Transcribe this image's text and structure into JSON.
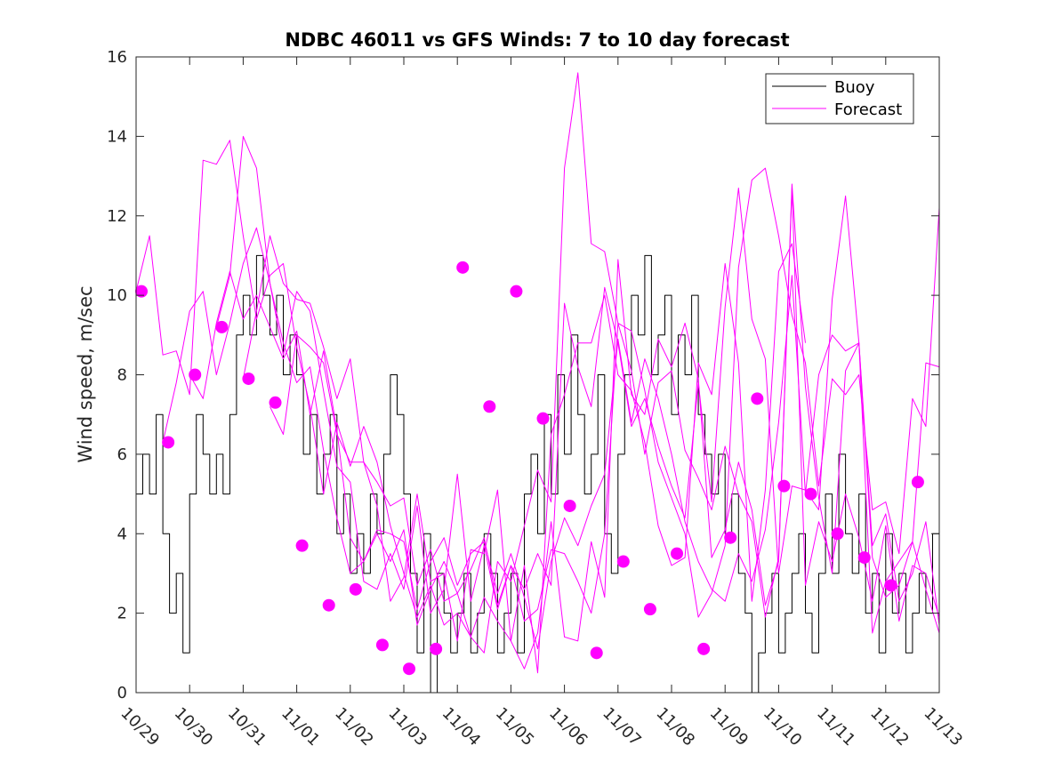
{
  "chart_data": {
    "type": "line",
    "title": "NDBC 46011 vs GFS Winds: 7 to 10 day forecast",
    "xlabel": "",
    "ylabel": "Wind speed, m/sec",
    "xlim": [
      0,
      15
    ],
    "ylim": [
      0,
      16
    ],
    "yticks": [
      0,
      2,
      4,
      6,
      8,
      10,
      12,
      14,
      16
    ],
    "xtick_labels": [
      "10/29",
      "10/30",
      "10/31",
      "11/01",
      "11/02",
      "11/03",
      "11/04",
      "11/05",
      "11/06",
      "11/07",
      "11/08",
      "11/09",
      "11/10",
      "11/11",
      "11/12",
      "11/13"
    ],
    "legend": {
      "position": "top-right",
      "entries": [
        "Buoy",
        "Forecast"
      ]
    },
    "colors": {
      "buoy": "#000000",
      "forecast": "#ff00ff"
    },
    "series": [
      {
        "name": "Buoy",
        "x": [
          0,
          0.125,
          0.25,
          0.375,
          0.5,
          0.625,
          0.75,
          0.875,
          1,
          1.125,
          1.25,
          1.375,
          1.5,
          1.625,
          1.75,
          1.875,
          2,
          2.125,
          2.25,
          2.375,
          2.5,
          2.625,
          2.75,
          2.875,
          3,
          3.125,
          3.25,
          3.375,
          3.5,
          3.625,
          3.75,
          3.875,
          4,
          4.125,
          4.25,
          4.375,
          4.5,
          4.625,
          4.75,
          4.875,
          5,
          5.125,
          5.25,
          5.375,
          5.5,
          5.625,
          5.75,
          5.875,
          6,
          6.125,
          6.25,
          6.375,
          6.5,
          6.625,
          6.75,
          6.875,
          7,
          7.125,
          7.25,
          7.375,
          7.5,
          7.625,
          7.75,
          7.875,
          8,
          8.125,
          8.25,
          8.375,
          8.5,
          8.625,
          8.75,
          8.875,
          9,
          9.125,
          9.25,
          9.375,
          9.5,
          9.625,
          9.75,
          9.875,
          10,
          10.125,
          10.25,
          10.375,
          10.5,
          10.625,
          10.75,
          10.875,
          11,
          11.125,
          11.25,
          11.375,
          11.5,
          11.625,
          11.75,
          11.875,
          12,
          12.125,
          12.25,
          12.375,
          12.5,
          12.625,
          12.75,
          12.875,
          13,
          13.125,
          13.25,
          13.375,
          13.5,
          13.625,
          13.75,
          13.875,
          14,
          14.125,
          14.25,
          14.375,
          14.5,
          14.625,
          14.75,
          14.875,
          15
        ],
        "values": [
          5,
          6,
          5,
          7,
          4,
          2,
          3,
          1,
          5,
          7,
          6,
          5,
          6,
          5,
          7,
          9,
          10,
          9,
          11,
          10,
          9,
          10,
          8,
          9,
          8,
          6,
          7,
          5,
          6,
          7,
          4,
          5,
          3,
          4,
          3,
          5,
          4,
          6,
          8,
          7,
          5,
          3,
          1,
          4,
          0,
          3,
          2,
          1,
          2,
          3,
          1,
          2,
          4,
          3,
          1,
          2,
          3,
          1,
          5,
          6,
          4,
          7,
          5,
          8,
          6,
          9,
          7,
          5,
          6,
          8,
          4,
          3,
          6,
          8,
          10,
          9,
          11,
          8,
          9,
          10,
          7,
          9,
          8,
          10,
          7,
          6,
          5,
          6,
          4,
          5,
          3,
          2,
          0,
          1,
          2,
          3,
          1,
          2,
          3,
          4,
          2,
          1,
          3,
          5,
          3,
          6,
          4,
          3,
          5,
          2,
          3,
          1,
          4,
          2,
          3,
          1,
          2,
          3,
          2,
          4,
          2
        ],
        "markers": false
      },
      {
        "name": "Forecast",
        "x": [
          0,
          0.25,
          0.5,
          0.75,
          1,
          1.25,
          1.5,
          1.75,
          2,
          2.25,
          2.5,
          2.75,
          3,
          3.25,
          3.5,
          3.75,
          4,
          4.25,
          4.5,
          4.75,
          5,
          5.25,
          5.5,
          5.75,
          6,
          6.25,
          6.5,
          6.75,
          7,
          7.25,
          7.5,
          7.75,
          8,
          8.25,
          8.5,
          8.75,
          9,
          9.25,
          9.5,
          9.75,
          10,
          10.25,
          10.5,
          10.75,
          11,
          11.25,
          11.5,
          11.75,
          12,
          12.25,
          12.5,
          12.75,
          13,
          13.25,
          13.5,
          13.75,
          14,
          14.25,
          14.5,
          14.75,
          15
        ],
        "values": [
          10.1,
          11.5,
          8.5,
          8.6,
          7.5,
          13.4,
          13.3,
          13.9,
          11.5,
          9.4,
          10.5,
          10.8,
          8.7,
          7.2,
          5.0,
          6.8,
          5.7,
          6.7,
          5.8,
          4.2,
          3.0,
          1.9,
          2.7,
          1.7,
          2.0,
          1.4,
          2.4,
          1.8,
          1.3,
          0.6,
          1.5,
          4.3,
          1.4,
          1.3,
          3.8,
          2.4,
          10.9,
          7.5,
          7.0,
          8.9,
          8.2,
          9.3,
          7.9,
          3.4,
          4.1,
          5.8,
          4.6,
          2.2,
          3.3,
          12.7,
          2.7,
          4.3,
          3.3,
          5.0,
          3.9,
          2.3,
          4.2,
          1.8,
          3.2,
          3.0,
          1.9
        ],
        "markers": false
      },
      {
        "name": "Forecast",
        "x": [
          0.5,
          0.75,
          1,
          1.25,
          1.5,
          1.75,
          2,
          2.25,
          2.5,
          2.75,
          3,
          3.25,
          3.5,
          3.75,
          4,
          4.25,
          4.5,
          4.75,
          5,
          5.25,
          5.5,
          5.75,
          6,
          6.25,
          6.5,
          6.75,
          7,
          7.25,
          7.5,
          7.75,
          8,
          8.25,
          8.5,
          8.75,
          9,
          9.25,
          9.5,
          9.75,
          10,
          10.25,
          10.5,
          10.75,
          11,
          11.25,
          11.5,
          11.75,
          12,
          12.25,
          12.5,
          12.75,
          13,
          13.25,
          13.5,
          13.75,
          14,
          14.25,
          14.5,
          14.75,
          15
        ],
        "values": [
          6.3,
          7.8,
          9.6,
          10.1,
          8.0,
          9.3,
          10.8,
          11.7,
          10.3,
          8.8,
          7.8,
          8.2,
          6.1,
          4.4,
          3.0,
          3.3,
          4.0,
          3.3,
          4.1,
          1.7,
          2.6,
          3.3,
          2.5,
          3.1,
          3.9,
          2.2,
          3.2,
          1.8,
          2.1,
          3.6,
          3.5,
          2.8,
          2.0,
          4.0,
          9.3,
          8.1,
          6.0,
          7.8,
          8.1,
          6.1,
          5.4,
          4.6,
          6.2,
          5.0,
          4.3,
          1.9,
          3.4,
          12.8,
          7.7,
          4.9,
          3.0,
          8.1,
          8.8,
          3.7,
          4.5,
          2.3,
          3.0,
          4.3,
          1.7
        ],
        "markers": false
      },
      {
        "name": "Forecast",
        "x": [
          1,
          1.25,
          1.5,
          1.75,
          2,
          2.25,
          2.5,
          2.75,
          3,
          3.25,
          3.5,
          3.75,
          4,
          4.25,
          4.5,
          4.75,
          5,
          5.25,
          5.5,
          5.75,
          6,
          6.25,
          6.5,
          6.75,
          7,
          7.25,
          7.5,
          7.75,
          8,
          8.25,
          8.5,
          8.75,
          9,
          9.25,
          9.5,
          9.75,
          10,
          10.25,
          10.5,
          10.75,
          11,
          11.25,
          11.5,
          11.75,
          12,
          12.25,
          12.5,
          12.75,
          13,
          13.25,
          13.5,
          13.75,
          14,
          14.25,
          14.5,
          14.75,
          15
        ],
        "values": [
          8.0,
          7.4,
          9.3,
          10.6,
          9.4,
          10.0,
          9.2,
          8.4,
          9.1,
          7.0,
          8.6,
          6.6,
          3.9,
          3.3,
          4.1,
          4.0,
          3.8,
          2.1,
          3.3,
          3.9,
          2.7,
          3.5,
          3.8,
          2.5,
          3.5,
          2.4,
          1.1,
          3.3,
          4.4,
          3.7,
          4.7,
          5.5,
          8.9,
          6.8,
          8.4,
          7.4,
          6.0,
          4.3,
          3.3,
          2.6,
          2.3,
          3.5,
          2.8,
          4.1,
          6.8,
          10.5,
          5.0,
          8.0,
          9.0,
          8.6,
          8.8,
          1.5,
          2.8,
          3.3,
          3.8,
          2.6,
          1.5
        ],
        "markers": false
      },
      {
        "name": "Forecast",
        "x": [
          1.5,
          1.75,
          2,
          2.25,
          2.5,
          2.75,
          3,
          3.25,
          3.5,
          3.75,
          4,
          4.25,
          4.5,
          4.75,
          5,
          5.25,
          5.5,
          5.75,
          6,
          6.25,
          6.5,
          6.75,
          7,
          7.25,
          7.5,
          7.75,
          8,
          8.25,
          8.5,
          8.75,
          9,
          9.25,
          9.5,
          9.75,
          10,
          10.25,
          10.5,
          10.75,
          11,
          11.25,
          11.5,
          11.75,
          12,
          12.25,
          12.5,
          12.75,
          13,
          13.25,
          13.5,
          13.75,
          14,
          14.25,
          14.5,
          14.75,
          15
        ],
        "values": [
          9.2,
          10.5,
          14.0,
          13.2,
          10.3,
          8.5,
          10.1,
          9.6,
          7.6,
          5.7,
          5.3,
          2.8,
          2.6,
          3.5,
          2.6,
          4.7,
          2.0,
          2.6,
          5.5,
          2.3,
          3.7,
          2.1,
          3.2,
          2.6,
          3.5,
          2.7,
          9.8,
          8.2,
          7.2,
          10.2,
          8.8,
          6.7,
          7.4,
          6.2,
          5.2,
          4.4,
          7.8,
          4.8,
          9.7,
          12.7,
          9.4,
          8.4,
          3.0,
          5.2,
          5.1,
          4.6,
          9.9,
          12.5,
          8.8,
          3.4,
          2.4,
          2.7,
          3.8,
          8.3,
          8.2
        ],
        "markers": false
      },
      {
        "name": "Forecast",
        "x": [
          2,
          2.25,
          2.5,
          2.75,
          3,
          3.25,
          3.5,
          3.75,
          4,
          4.25,
          4.5,
          4.75,
          5,
          5.25,
          5.5,
          5.75,
          6,
          6.25,
          6.5,
          6.75,
          7,
          7.25,
          7.5,
          7.75,
          8,
          8.25,
          8.5,
          8.75,
          9,
          9.25,
          9.5,
          9.75,
          10,
          10.25,
          10.5,
          10.75,
          11,
          11.25,
          11.5,
          11.75,
          12,
          12.25,
          12.5,
          12.75,
          13,
          13.25,
          13.5,
          13.75,
          14,
          14.25,
          14.5,
          14.75,
          15
        ],
        "values": [
          7.9,
          9.6,
          11.5,
          10.3,
          9.9,
          9.8,
          8.7,
          7.4,
          8.4,
          5.8,
          5.3,
          4.7,
          4.9,
          2.7,
          3.6,
          2.3,
          2.5,
          1.4,
          1.0,
          3.3,
          2.8,
          4.2,
          5.6,
          4.8,
          13.2,
          15.6,
          11.3,
          11.1,
          9.3,
          9.1,
          7.6,
          5.8,
          4.9,
          4.0,
          1.9,
          2.5,
          3.7,
          10.7,
          12.9,
          13.2,
          11.5,
          9.5,
          8.3,
          5.2,
          7.9,
          7.5,
          8.0,
          4.6,
          4.8,
          3.5,
          7.4,
          6.7,
          12.2
        ],
        "markers": false
      },
      {
        "name": "Forecast",
        "x": [
          2.5,
          2.75,
          3,
          3.25,
          3.5,
          3.75,
          4,
          4.25,
          4.5,
          4.75,
          5,
          5.25,
          5.5,
          5.75,
          6,
          6.25,
          6.5,
          6.75,
          7,
          7.25,
          7.5,
          7.75,
          8,
          8.25,
          8.5,
          8.75,
          9,
          9.25,
          9.5,
          9.75,
          10,
          10.25,
          10.5,
          10.75,
          11,
          11.25,
          11.5,
          11.75,
          12,
          12.25,
          12.5
        ],
        "values": [
          7.2,
          6.5,
          9.0,
          8.7,
          8.3,
          6.5,
          5.8,
          5.8,
          4.7,
          2.3,
          2.9,
          5.0,
          2.8,
          3.0,
          1.3,
          3.6,
          3.5,
          5.1,
          1.3,
          3.2,
          0.5,
          6.5,
          7.5,
          8.8,
          8.8,
          10.0,
          8.0,
          7.6,
          6.3,
          4.2,
          3.2,
          3.4,
          8.3,
          7.5,
          10.8,
          8.3,
          2.3,
          5.1,
          10.6,
          11.3,
          8.8
        ],
        "markers": false
      },
      {
        "name": "Forecast",
        "x": [
          0.1,
          0.6,
          1.1,
          1.6,
          2.1,
          2.6,
          3.1,
          3.6,
          4.1,
          4.6,
          5.1,
          5.6,
          6.1,
          6.6,
          7.1,
          7.6,
          8.1,
          8.6,
          9.1,
          9.6,
          10.1,
          10.6,
          11.1,
          11.6,
          12.1,
          12.6,
          13.1,
          13.6,
          14.1,
          14.6
        ],
        "values": [
          10.1,
          6.3,
          8.0,
          9.2,
          7.9,
          7.3,
          3.7,
          2.2,
          2.6,
          1.2,
          0.6,
          1.1,
          10.7,
          7.2,
          10.1,
          6.9,
          4.7,
          1.0,
          3.3,
          2.1,
          3.5,
          1.1,
          3.9,
          7.4,
          5.2,
          5.0,
          4.0,
          3.4,
          2.7,
          5.3
        ],
        "markers": true
      }
    ]
  }
}
